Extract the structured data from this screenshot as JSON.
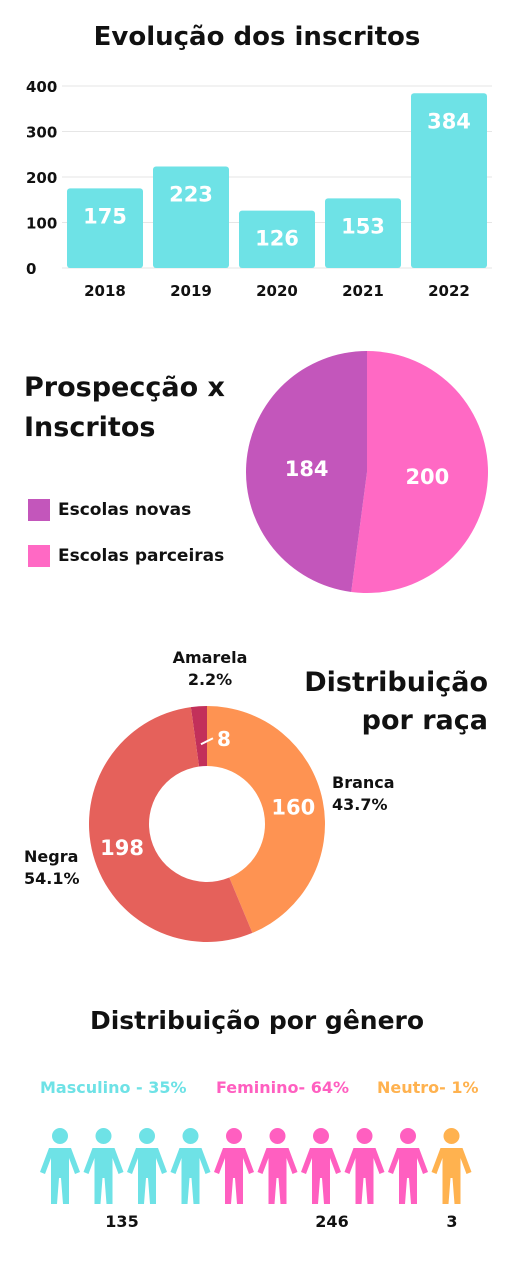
{
  "colors": {
    "bar": "#6ee2e6",
    "pie_novas": "#c356bb",
    "pie_parceiras": "#ff69c4",
    "amarela": "#c2305a",
    "branca": "#fe9352",
    "negra": "#e5615b",
    "masculino": "#6ee2e6",
    "feminino": "#ff5fc0",
    "neutro": "#ffb24f"
  },
  "chart_data": [
    {
      "type": "bar",
      "title": "Evolução dos inscritos",
      "categories": [
        "2018",
        "2019",
        "2020",
        "2021",
        "2022"
      ],
      "values": [
        175,
        223,
        126,
        153,
        384
      ],
      "yticks": [
        "400",
        "300",
        "200",
        "100",
        "0"
      ],
      "ylim": [
        0,
        400
      ],
      "grid": true
    },
    {
      "type": "pie",
      "title": "Prospecção x Inscritos",
      "slices": [
        {
          "name": "Escolas novas",
          "value": 184
        },
        {
          "name": "Escolas parceiras",
          "value": 200
        }
      ],
      "legend": "left"
    },
    {
      "type": "pie",
      "title_line1": "Distribuição",
      "title_line2": "por raça",
      "slices": [
        {
          "name": "Amarela",
          "value": 8,
          "percent": "2.2%"
        },
        {
          "name": "Branca",
          "value": 160,
          "percent": "43.7%"
        },
        {
          "name": "Negra",
          "value": 198,
          "percent": "54.1%"
        }
      ]
    },
    {
      "type": "pictogram",
      "title": "Distribuição por gênero",
      "groups": [
        {
          "label": "Masculino - 35%",
          "count": "135",
          "icons": 4
        },
        {
          "label": "Feminino- 64%",
          "count": "246",
          "icons": 5
        },
        {
          "label": "Neutro- 1%",
          "count": "3",
          "icons": 1
        }
      ]
    }
  ]
}
